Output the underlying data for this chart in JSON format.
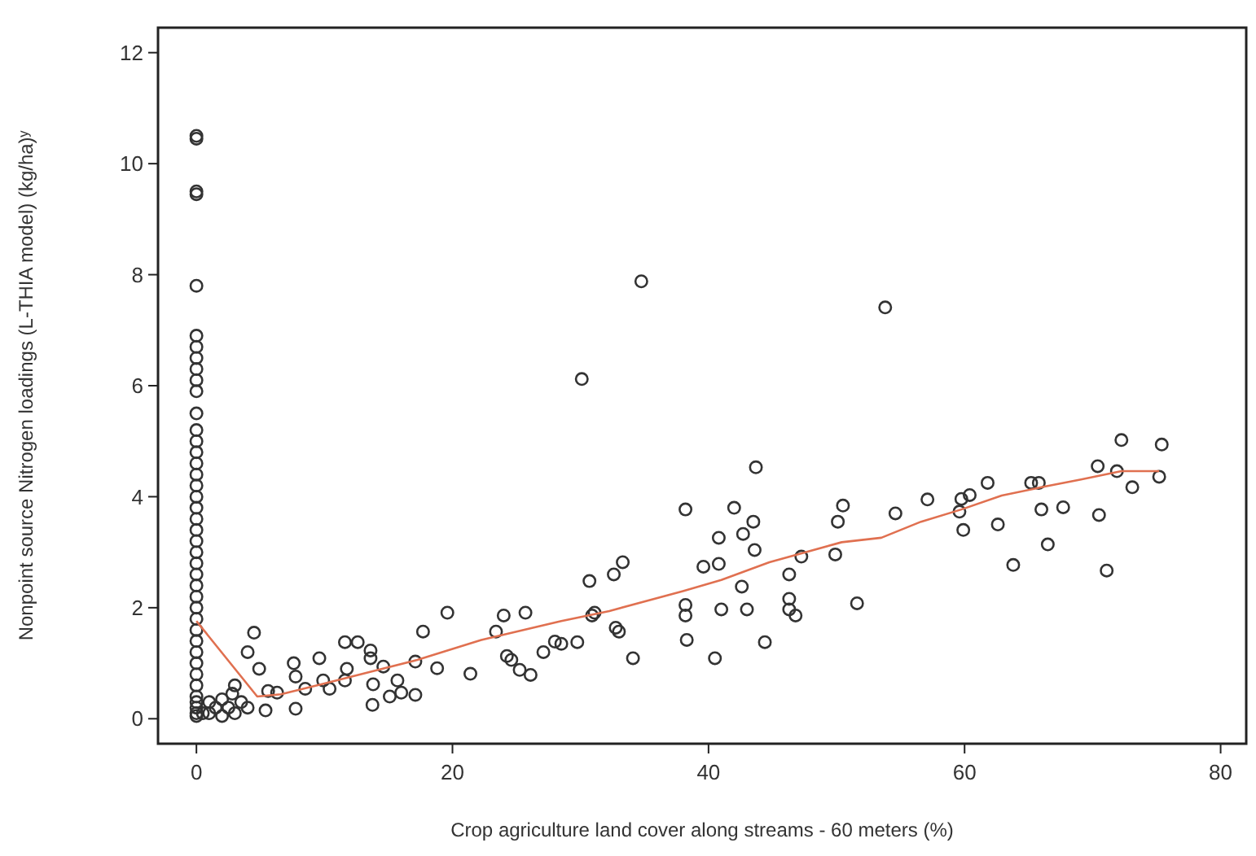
{
  "chart_data": {
    "type": "scatter",
    "xlabel": "Crop agriculture land cover along streams - 60 meters (%)",
    "ylabel": "Nonpoint source Nitrogen loadings (L-THIA model) (kg/ha)ʸ",
    "xlim": [
      -3,
      82
    ],
    "ylim": [
      -0.45,
      12.45
    ],
    "xticks": [
      0,
      20,
      40,
      60,
      80
    ],
    "yticks": [
      0,
      2,
      4,
      6,
      8,
      10,
      12
    ],
    "grid": false,
    "series": [
      {
        "marker": "circle",
        "color": "#333333",
        "x": [
          0,
          0,
          0,
          0,
          0,
          0,
          0,
          0,
          0,
          0,
          0,
          0,
          0,
          0,
          0,
          0,
          0,
          0,
          0,
          0,
          0,
          0,
          0,
          0,
          0,
          0,
          0,
          0,
          0,
          0,
          0,
          0,
          0,
          0,
          0,
          0,
          0,
          0,
          0,
          0,
          0,
          0.5,
          1,
          1,
          1.5,
          2,
          2,
          2.5,
          3,
          3,
          3.5,
          4,
          2.8,
          4,
          4.5,
          4.9,
          5.4,
          5.6,
          6.3,
          7.6,
          7.75,
          7.75,
          8.5,
          9.6,
          9.9,
          10.4,
          11.6,
          12.6,
          11.75,
          11.6,
          13.6,
          13.6,
          13.75,
          13.8,
          14.6,
          15.1,
          15.7,
          16,
          17.1,
          17.1,
          17.7,
          18.8,
          19.6,
          21.4,
          23.4,
          24,
          24.25,
          24.6,
          25.25,
          25.7,
          26.1,
          27.1,
          28,
          28.5,
          29.75,
          30.1,
          30.7,
          30.9,
          31.1,
          32.6,
          32.75,
          33,
          33.3,
          34.1,
          34.75,
          38.2,
          38.2,
          38.2,
          38.3,
          39.6,
          40.5,
          40.8,
          40.8,
          41,
          42,
          42.6,
          42.7,
          43,
          43.5,
          43.6,
          43.7,
          44.4,
          46.3,
          46.3,
          46.3,
          46.8,
          47.25,
          49.9,
          50.1,
          50.5,
          51.6,
          53.8,
          54.6,
          57.1,
          59.6,
          59.75,
          59.9,
          60.4,
          61.8,
          62.6,
          63.8,
          65.2,
          65.8,
          66,
          66.5,
          67.7,
          70.4,
          70.5,
          71.1,
          71.9,
          72.25,
          73.1,
          75.4,
          75.2
        ],
        "values": [
          10.5,
          10.45,
          9.5,
          9.45,
          7.8,
          6.9,
          6.7,
          6.5,
          6.3,
          6.1,
          5.9,
          5.5,
          5.2,
          5,
          4.8,
          4.6,
          4.4,
          4.2,
          4,
          3.8,
          3.6,
          3.4,
          3.2,
          3,
          2.8,
          2.6,
          2.4,
          2.2,
          2,
          1.8,
          1.6,
          1.4,
          1.2,
          1,
          0.8,
          0.6,
          0.4,
          0.3,
          0.2,
          0.1,
          0.05,
          0.1,
          0.3,
          0.1,
          0.2,
          0.05,
          0.35,
          0.2,
          0.1,
          0.6,
          0.3,
          0.2,
          0.45,
          1.2,
          1.55,
          0.9,
          0.15,
          0.5,
          0.47,
          1,
          0.76,
          0.18,
          0.54,
          1.09,
          0.69,
          0.54,
          1.38,
          1.38,
          0.9,
          0.69,
          1.23,
          1.09,
          0.25,
          0.62,
          0.94,
          0.4,
          0.69,
          0.47,
          0.43,
          1.03,
          1.57,
          0.91,
          1.91,
          0.81,
          1.57,
          1.86,
          1.13,
          1.06,
          0.88,
          1.91,
          0.79,
          1.2,
          1.39,
          1.35,
          1.38,
          6.12,
          2.48,
          1.86,
          1.91,
          2.6,
          1.64,
          1.57,
          2.82,
          1.09,
          7.88,
          3.77,
          2.05,
          1.86,
          1.42,
          2.74,
          1.09,
          3.26,
          2.79,
          1.97,
          3.8,
          2.38,
          3.33,
          1.97,
          3.55,
          3.04,
          4.53,
          1.38,
          2.6,
          2.16,
          1.97,
          1.86,
          2.92,
          2.96,
          3.55,
          3.84,
          2.08,
          7.41,
          3.7,
          3.95,
          3.73,
          3.96,
          3.4,
          4.03,
          4.25,
          3.5,
          2.77,
          4.25,
          4.25,
          3.77,
          3.14,
          3.81,
          4.55,
          3.67,
          2.67,
          4.46,
          5.02,
          4.17,
          4.94,
          4.36
        ]
      },
      {
        "type": "line",
        "marker": "none",
        "color": "#e07050",
        "x": [
          0,
          4.75,
          6.6,
          9.75,
          13.5,
          17.25,
          22.25,
          28.5,
          32.25,
          38,
          41,
          44.75,
          50.4,
          53.5,
          56.6,
          59.75,
          62.9,
          66,
          69.1,
          72.25,
          75.2
        ],
        "values": [
          1.76,
          0.4,
          0.44,
          0.62,
          0.84,
          1.06,
          1.42,
          1.76,
          1.94,
          2.3,
          2.5,
          2.82,
          3.18,
          3.26,
          3.55,
          3.77,
          4.02,
          4.17,
          4.31,
          4.46,
          4.46
        ]
      }
    ]
  }
}
